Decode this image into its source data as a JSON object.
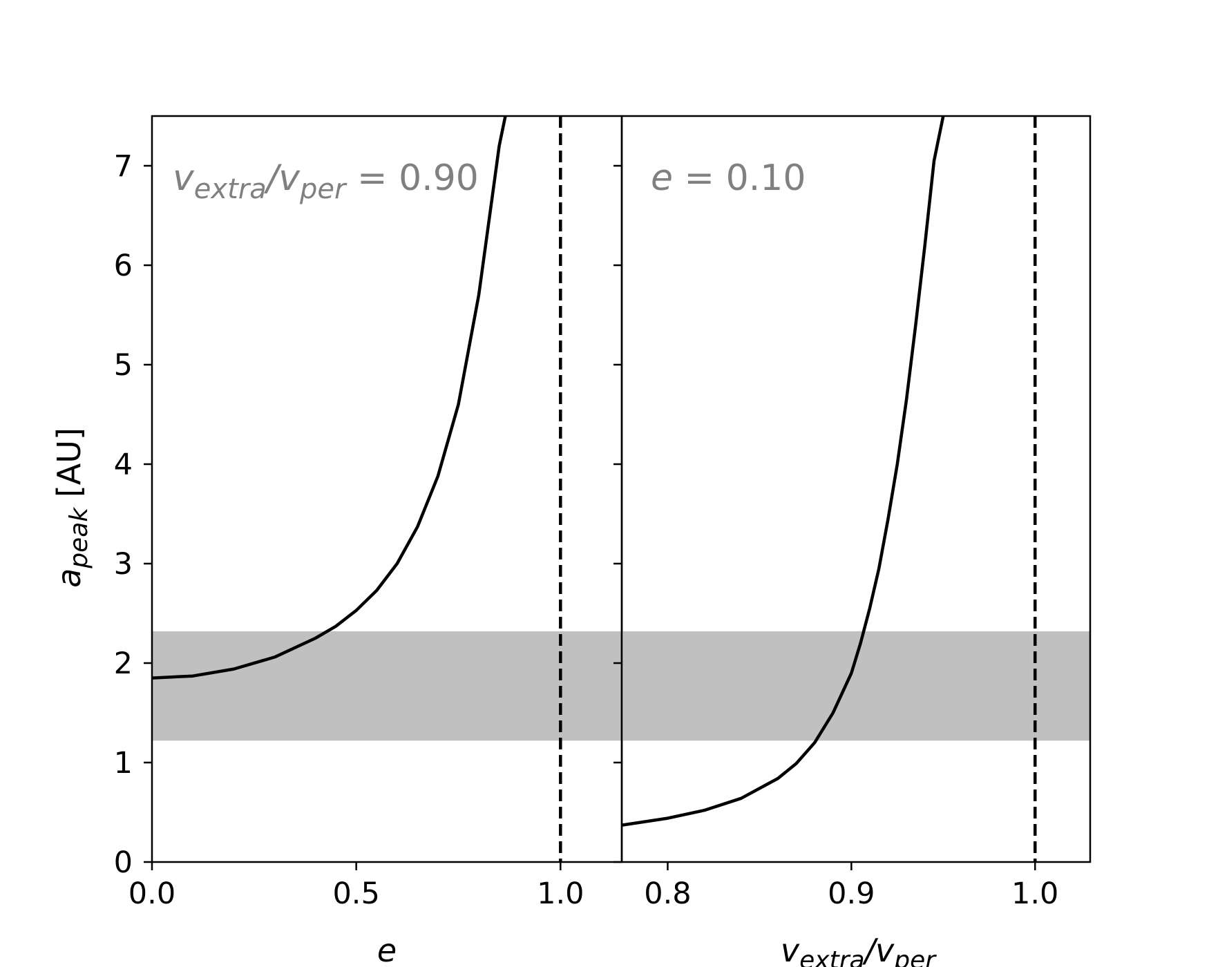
{
  "chart_data": [
    {
      "type": "line",
      "panel": "left",
      "xlabel": "e",
      "ylabel": "a_peak [AU]",
      "xlim": [
        0.0,
        1.15
      ],
      "ylim": [
        0,
        7.5
      ],
      "xticks": [
        0.0,
        0.5,
        1.0
      ],
      "xtick_labels": [
        "0.0",
        "0.5",
        "1.0"
      ],
      "yticks": [
        0,
        1,
        2,
        3,
        4,
        5,
        6,
        7
      ],
      "ytick_labels": [
        "0",
        "1",
        "2",
        "3",
        "4",
        "5",
        "6",
        "7"
      ],
      "annotation": "v_extra/v_per = 0.90",
      "series": [
        {
          "x": [
            0.0,
            0.1,
            0.2,
            0.3,
            0.4,
            0.45,
            0.5,
            0.55,
            0.6,
            0.65,
            0.7,
            0.75,
            0.8,
            0.83,
            0.85,
            0.865
          ],
          "y": [
            1.85,
            1.87,
            1.94,
            2.06,
            2.25,
            2.37,
            2.53,
            2.73,
            3.0,
            3.37,
            3.88,
            4.6,
            5.7,
            6.6,
            7.2,
            7.5
          ],
          "color": "#000000",
          "style": "solid"
        }
      ],
      "vline": {
        "x": 1.0,
        "style": "dashed",
        "color": "#000000"
      },
      "band": {
        "y0": 1.22,
        "y1": 2.32,
        "color": "#c0c0c0"
      },
      "grid": false
    },
    {
      "type": "line",
      "panel": "right",
      "xlabel": "v_extra/v_per",
      "xlim": [
        0.775,
        1.03
      ],
      "ylim": [
        0,
        7.5
      ],
      "xticks": [
        0.8,
        0.9,
        1.0
      ],
      "xtick_labels": [
        "0.8",
        "0.9",
        "1.0"
      ],
      "yticks": [
        0,
        1,
        2,
        3,
        4,
        5,
        6,
        7
      ],
      "annotation": "e = 0.10",
      "series": [
        {
          "x": [
            0.775,
            0.8,
            0.82,
            0.84,
            0.86,
            0.87,
            0.88,
            0.89,
            0.9,
            0.905,
            0.91,
            0.915,
            0.92,
            0.925,
            0.93,
            0.935,
            0.94,
            0.945,
            0.95
          ],
          "y": [
            0.37,
            0.44,
            0.52,
            0.64,
            0.84,
            0.99,
            1.2,
            1.5,
            1.9,
            2.2,
            2.55,
            2.95,
            3.45,
            4.0,
            4.65,
            5.4,
            6.2,
            7.05,
            7.5
          ],
          "color": "#000000",
          "style": "solid"
        }
      ],
      "vline": {
        "x": 1.0,
        "style": "dashed",
        "color": "#000000"
      },
      "band": {
        "y0": 1.22,
        "y1": 2.32,
        "color": "#c0c0c0"
      },
      "grid": false
    }
  ]
}
